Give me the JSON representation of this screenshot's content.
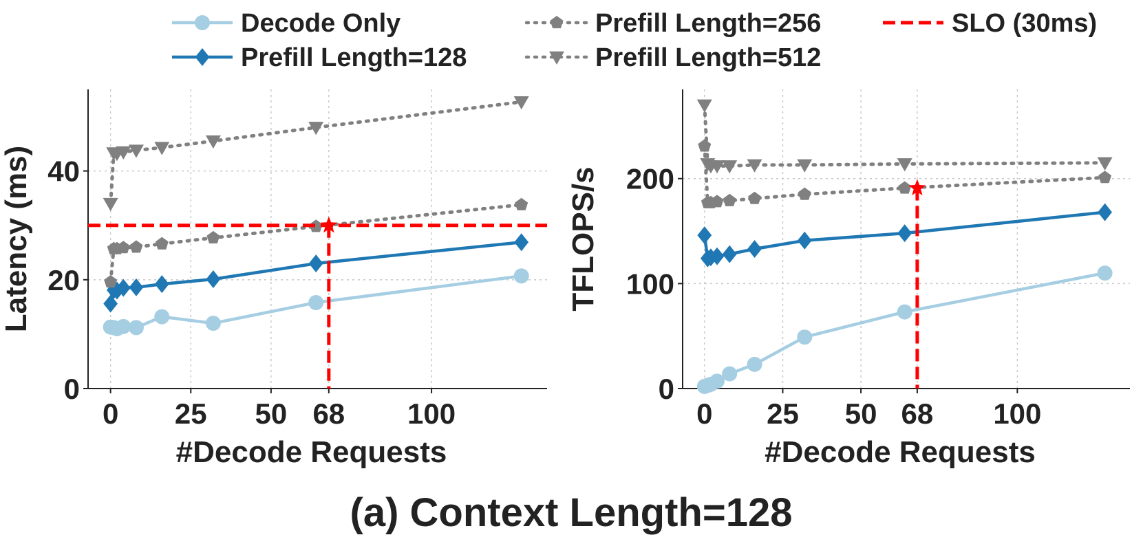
{
  "caption": "(a) Context Length=128",
  "colors": {
    "decode_only": "#a6cee3",
    "prefill_128": "#1f78b4",
    "prefill_gray": "#808080",
    "slo": "#ff0000"
  },
  "legend": [
    {
      "key": "decode_only",
      "label": "Decode Only",
      "marker": "circle",
      "style": "solid",
      "color": "#a6cee3"
    },
    {
      "key": "prefill_128",
      "label": "Prefill Length=128",
      "marker": "diamond",
      "style": "solid",
      "color": "#1f78b4"
    },
    {
      "key": "prefill_256",
      "label": "Prefill Length=256",
      "marker": "pentagon",
      "style": "dotted",
      "color": "#808080"
    },
    {
      "key": "prefill_512",
      "label": "Prefill Length=512",
      "marker": "triangle-down",
      "style": "dotted",
      "color": "#808080"
    },
    {
      "key": "slo",
      "label": "SLO (30ms)",
      "marker": "none",
      "style": "dashed",
      "color": "#ff0000"
    }
  ],
  "chart_data": [
    {
      "type": "line",
      "xlabel": "#Decode Requests",
      "ylabel": "Latency (ms)",
      "xlim": [
        -7,
        136
      ],
      "ylim": [
        0,
        55
      ],
      "xticks": [
        0,
        25,
        50,
        68,
        100
      ],
      "yticks": [
        0,
        20,
        40
      ],
      "grid": true,
      "slo_hline": 30,
      "slo_vline": 68,
      "star": [
        68,
        30
      ],
      "series": [
        {
          "key": "decode_only",
          "name": "Decode Only",
          "x": [
            0,
            1,
            2,
            4,
            8,
            16,
            32,
            64,
            128
          ],
          "y": [
            11.3,
            11.2,
            11.0,
            11.4,
            11.2,
            13.2,
            12.0,
            15.8,
            20.7
          ]
        },
        {
          "key": "prefill_128",
          "name": "Prefill Length=128",
          "x": [
            0,
            1,
            2,
            4,
            8,
            16,
            32,
            64,
            128
          ],
          "y": [
            15.6,
            18.1,
            18.0,
            18.5,
            18.6,
            19.2,
            20.1,
            23.0,
            26.9
          ]
        },
        {
          "key": "prefill_256",
          "name": "Prefill Length=256",
          "x": [
            0,
            1,
            2,
            4,
            8,
            16,
            32,
            64,
            128
          ],
          "y": [
            19.6,
            25.7,
            25.7,
            25.9,
            26.0,
            26.6,
            27.7,
            29.8,
            33.8
          ]
        },
        {
          "key": "prefill_512",
          "name": "Prefill Length=512",
          "x": [
            0,
            1,
            2,
            4,
            8,
            16,
            32,
            64,
            128
          ],
          "y": [
            34.0,
            43.3,
            43.2,
            43.5,
            43.8,
            44.3,
            45.5,
            48.0,
            52.7
          ]
        }
      ]
    },
    {
      "type": "line",
      "xlabel": "#Decode Requests",
      "ylabel": "TFLOPS/s",
      "xlim": [
        -7,
        136
      ],
      "ylim": [
        0,
        285
      ],
      "xticks": [
        0,
        25,
        50,
        68,
        100
      ],
      "yticks": [
        0,
        100,
        200
      ],
      "grid": true,
      "slo_vline": 68,
      "star": [
        68,
        191
      ],
      "series": [
        {
          "key": "decode_only",
          "name": "Decode Only",
          "x": [
            0,
            1,
            2,
            4,
            8,
            16,
            32,
            64,
            128
          ],
          "y": [
            2,
            3,
            4,
            7,
            14,
            23,
            49,
            73,
            110
          ]
        },
        {
          "key": "prefill_128",
          "name": "Prefill Length=128",
          "x": [
            0,
            1,
            2,
            4,
            8,
            16,
            32,
            64,
            128
          ],
          "y": [
            146,
            124,
            125,
            126,
            128,
            133,
            141,
            148,
            168
          ]
        },
        {
          "key": "prefill_256",
          "name": "Prefill Length=256",
          "x": [
            0,
            1,
            2,
            4,
            8,
            16,
            32,
            64,
            128
          ],
          "y": [
            231,
            177,
            177,
            178,
            179,
            181,
            185,
            191,
            201
          ]
        },
        {
          "key": "prefill_512",
          "name": "Prefill Length=512",
          "x": [
            0,
            1,
            2,
            4,
            8,
            16,
            32,
            64,
            128
          ],
          "y": [
            270,
            214,
            212,
            212,
            212,
            213,
            213,
            214,
            215
          ]
        }
      ]
    }
  ]
}
